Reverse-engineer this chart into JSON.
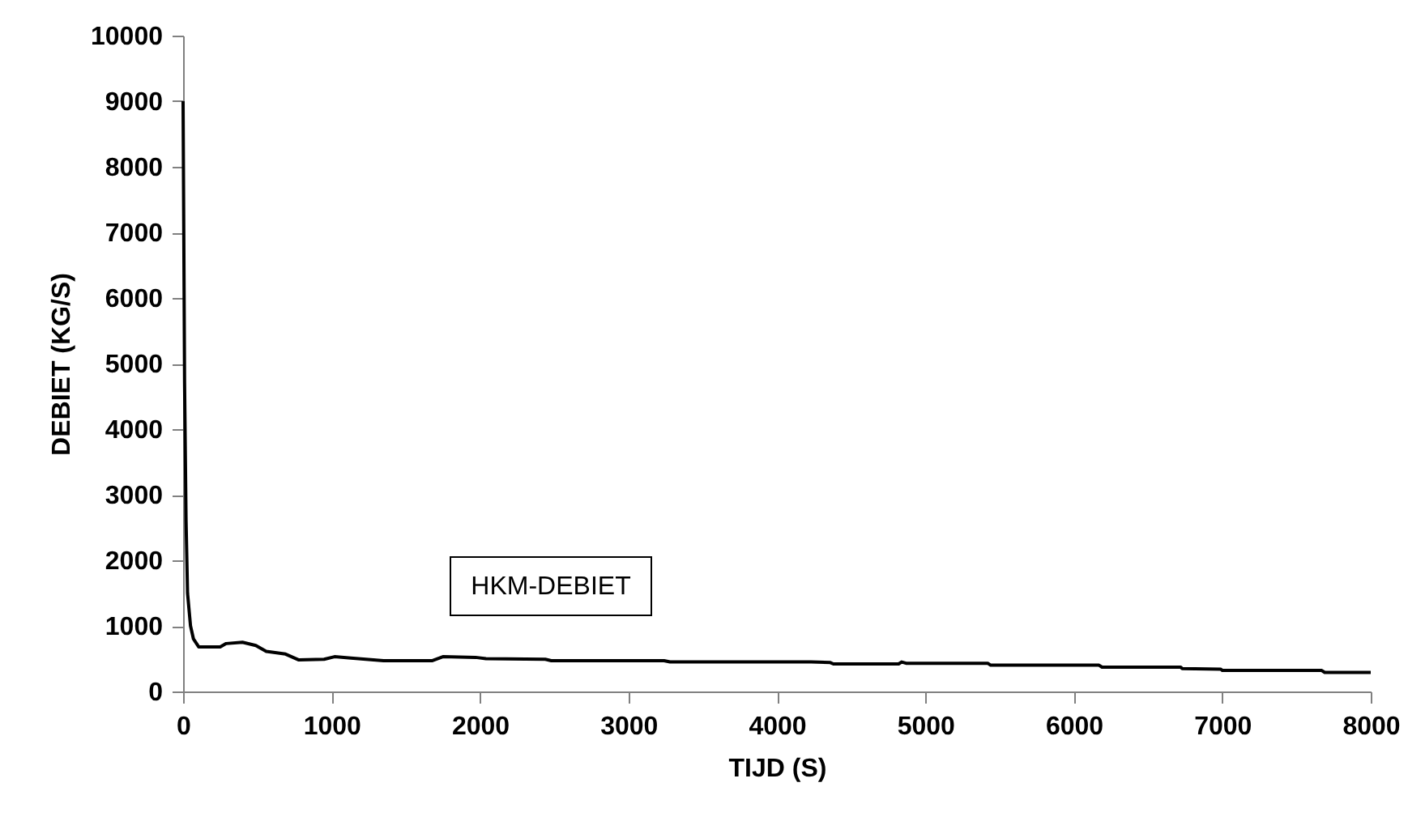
{
  "chart_data": {
    "type": "line",
    "xlabel": "TIJD (S)",
    "ylabel": "DEBIET (KG/S)",
    "xlim": [
      0,
      8000
    ],
    "xticks": [
      0,
      1000,
      2000,
      3000,
      4000,
      5000,
      6000,
      7000,
      8000
    ],
    "ylim": [
      0,
      10000
    ],
    "yticks": [
      0,
      1000,
      2000,
      3000,
      4000,
      5000,
      6000,
      7000,
      8000,
      9000,
      10000
    ],
    "grid": false,
    "marker": "none",
    "line_style": "solid",
    "series": [
      {
        "name": "HKM-DEBIET",
        "color": "#000000",
        "x": [
          0,
          10,
          20,
          30,
          50,
          70,
          105,
          250,
          290,
          400,
          490,
          560,
          690,
          780,
          950,
          1020,
          1130,
          1350,
          1680,
          1750,
          1970,
          2040,
          2440,
          2480,
          3240,
          3280,
          4230,
          4360,
          4380,
          4820,
          4840,
          4870,
          5420,
          5440,
          6170,
          6190,
          6720,
          6730,
          6990,
          7000,
          7670,
          7690,
          8000
        ],
        "values": [
          9000,
          4700,
          2600,
          1500,
          1000,
          800,
          680,
          680,
          730,
          750,
          700,
          610,
          570,
          480,
          490,
          530,
          510,
          470,
          470,
          530,
          520,
          500,
          490,
          470,
          470,
          450,
          450,
          440,
          420,
          420,
          450,
          430,
          430,
          400,
          400,
          370,
          370,
          350,
          340,
          320,
          320,
          290,
          290
        ]
      }
    ]
  }
}
